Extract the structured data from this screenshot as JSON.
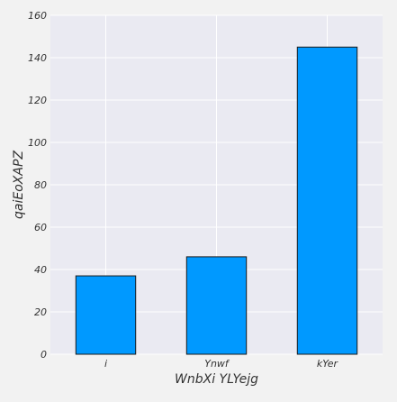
{
  "chart_data": {
    "type": "bar",
    "categories": [
      "i",
      "Ynwf",
      "kYer"
    ],
    "values": [
      37,
      46,
      145
    ],
    "xlabel": "WnbXi YLYejg",
    "ylabel": "qaiEoXAPZ",
    "ylim": [
      0,
      160
    ],
    "yticks": [
      0,
      20,
      40,
      60,
      80,
      100,
      120,
      140,
      160
    ],
    "grid": true,
    "legend": "none",
    "colors": {
      "bar": "#0099ff",
      "bar_edge": "#1a1a1a",
      "plot_background": "#eaeaf2",
      "figure_background": "#f2f2f2",
      "grid": "#ffffff"
    }
  }
}
